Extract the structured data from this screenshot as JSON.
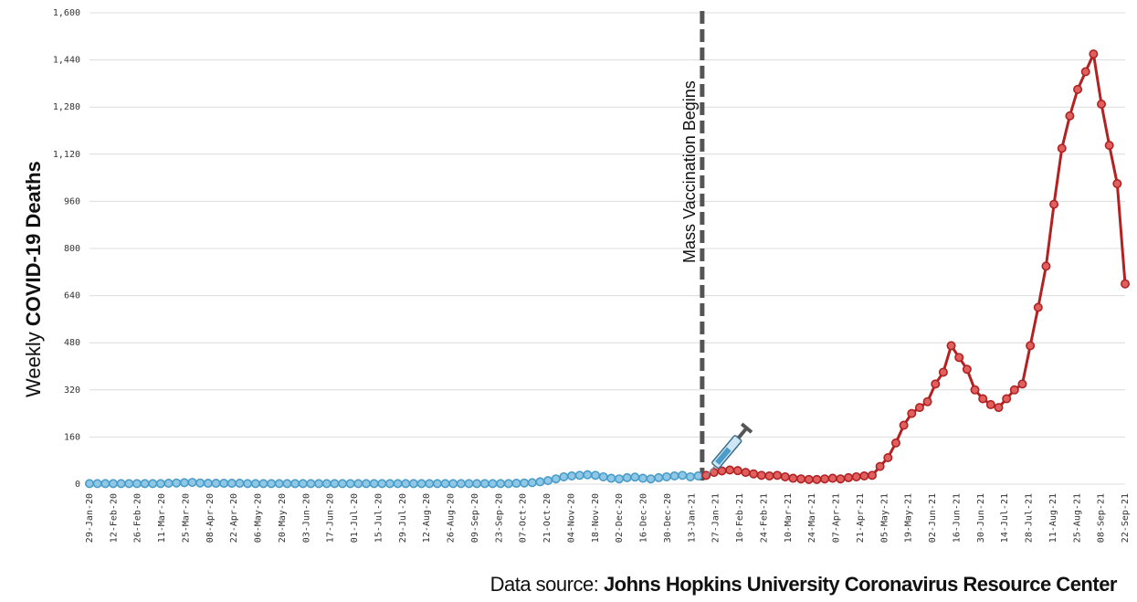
{
  "chart_data": {
    "type": "line",
    "ylabel_prefix": "Weekly ",
    "ylabel_bold": "COVID-19 Deaths",
    "ylim": [
      0,
      1600
    ],
    "yticks": [
      "0",
      "160",
      "320",
      "480",
      "640",
      "800",
      "960",
      "1,120",
      "1,280",
      "1,440",
      "1,600"
    ],
    "ytick_values": [
      0,
      160,
      320,
      480,
      640,
      800,
      960,
      1120,
      1280,
      1440,
      1600
    ],
    "xtick_labels": [
      "29-Jan-20",
      "12-Feb-20",
      "26-Feb-20",
      "11-Mar-20",
      "25-Mar-20",
      "08-Apr-20",
      "22-Apr-20",
      "06-May-20",
      "20-May-20",
      "03-Jun-20",
      "17-Jun-20",
      "01-Jul-20",
      "15-Jul-20",
      "29-Jul-20",
      "12-Aug-20",
      "26-Aug-20",
      "09-Sep-20",
      "23-Sep-20",
      "07-Oct-20",
      "21-Oct-20",
      "04-Nov-20",
      "18-Nov-20",
      "02-Dec-20",
      "16-Dec-20",
      "30-Dec-20",
      "13-Jan-21",
      "27-Jan-21",
      "10-Feb-21",
      "24-Feb-21",
      "10-Mar-21",
      "24-Mar-21",
      "07-Apr-21",
      "21-Apr-21",
      "05-May-21",
      "19-May-21",
      "02-Jun-21",
      "16-Jun-21",
      "30-Jun-21",
      "14-Jul-21",
      "28-Jul-21",
      "11-Aug-21",
      "25-Aug-21",
      "08-Sep-21",
      "22-Sep-21"
    ],
    "annotation": "Mass Vaccination Begins",
    "grid": true,
    "series": [
      {
        "color": "#4a9cc9",
        "values": [
          2,
          2,
          2,
          2,
          2,
          2,
          2,
          2,
          2,
          2,
          3,
          4,
          5,
          6,
          4,
          3,
          3,
          3,
          3,
          3,
          2,
          2,
          2,
          2,
          2,
          2,
          2,
          2,
          2,
          2,
          2,
          2,
          2,
          2,
          2,
          2,
          2,
          2,
          2,
          2,
          2,
          2,
          2,
          2,
          2,
          2,
          2,
          2,
          2,
          2,
          2,
          2,
          2,
          2,
          3,
          4,
          5,
          8,
          12,
          18,
          25,
          28,
          30,
          32,
          30,
          25,
          20,
          18,
          22,
          24,
          20,
          18,
          22,
          25,
          28,
          30,
          25,
          28
        ]
      },
      {
        "color": "#b22222",
        "values": [
          30,
          40,
          45,
          48,
          46,
          40,
          35,
          30,
          28,
          30,
          25,
          20,
          18,
          16,
          16,
          18,
          20,
          18,
          22,
          25,
          28,
          30,
          60,
          90,
          140,
          200,
          240,
          260,
          280,
          340,
          380,
          470,
          430,
          390,
          320,
          290,
          270,
          260,
          290,
          320,
          340,
          470,
          600,
          740,
          950,
          1140,
          1250,
          1340,
          1400,
          1460,
          1290,
          1150,
          1020,
          680
        ]
      }
    ]
  },
  "annotation_icon": "syringe-icon",
  "source": {
    "prefix": "Data source: ",
    "name": "Johns Hopkins University Coronavirus Resource Center"
  }
}
